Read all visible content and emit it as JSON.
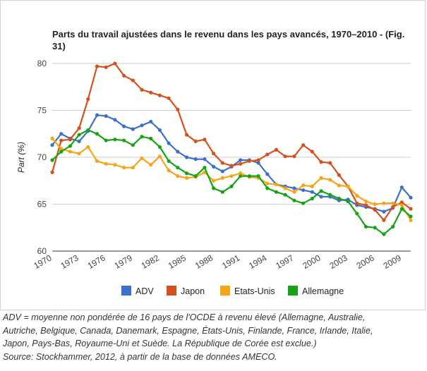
{
  "chart_data": {
    "type": "line",
    "title": "Parts du travail ajustées dans le revenu dans les pays avancés, 1970–2010 - (Fig. 31)",
    "ylabel": "Part (%)",
    "xlabel": "",
    "ylim": [
      60,
      80
    ],
    "yticks": [
      60,
      65,
      70,
      75,
      80
    ],
    "xticks": [
      1970,
      1973,
      1976,
      1979,
      1982,
      1985,
      1988,
      1991,
      1994,
      1997,
      2000,
      2003,
      2006,
      2009
    ],
    "x": [
      1970,
      1971,
      1972,
      1973,
      1974,
      1975,
      1976,
      1977,
      1978,
      1979,
      1980,
      1981,
      1982,
      1983,
      1984,
      1985,
      1986,
      1987,
      1988,
      1989,
      1990,
      1991,
      1992,
      1993,
      1994,
      1995,
      1996,
      1997,
      1998,
      1999,
      2000,
      2001,
      2002,
      2003,
      2004,
      2005,
      2006,
      2007,
      2008,
      2009,
      2010
    ],
    "grid": true,
    "legend": "bottom",
    "series": [
      {
        "name": "ADV",
        "color": "#3d6fcc",
        "values": [
          71.3,
          72.5,
          72.0,
          71.7,
          72.8,
          74.5,
          74.4,
          74.0,
          73.3,
          73.0,
          73.4,
          73.8,
          72.9,
          71.5,
          70.6,
          70.0,
          69.8,
          69.8,
          69.0,
          68.5,
          69.0,
          69.7,
          69.7,
          69.4,
          68.2,
          67.1,
          66.9,
          66.7,
          66.5,
          66.3,
          65.8,
          65.8,
          65.4,
          65.5,
          64.9,
          64.7,
          64.5,
          64.2,
          64.6,
          66.8,
          65.7
        ]
      },
      {
        "name": "Japon",
        "color": "#d7501b",
        "values": [
          68.4,
          71.8,
          71.9,
          73.1,
          76.2,
          79.7,
          79.6,
          80.0,
          78.7,
          78.2,
          77.2,
          76.9,
          76.6,
          76.3,
          75.1,
          72.4,
          71.7,
          71.9,
          70.4,
          69.4,
          69.1,
          69.3,
          69.6,
          69.7,
          70.3,
          70.8,
          70.1,
          70.1,
          71.3,
          70.6,
          69.5,
          69.4,
          68.1,
          66.9,
          65.1,
          64.9,
          64.4,
          63.3,
          64.7,
          65.2,
          64.5
        ]
      },
      {
        "name": "Etats-Unis",
        "color": "#f7a417",
        "values": [
          72.0,
          70.9,
          70.6,
          70.4,
          71.1,
          69.6,
          69.3,
          69.2,
          68.9,
          68.9,
          69.9,
          69.2,
          70.1,
          68.6,
          68.0,
          67.8,
          67.9,
          68.4,
          67.5,
          67.8,
          68.0,
          68.3,
          67.9,
          67.8,
          67.2,
          67.1,
          66.7,
          66.3,
          67.0,
          66.9,
          67.8,
          67.6,
          67.0,
          66.9,
          65.9,
          65.3,
          65.0,
          65.1,
          65.1,
          64.9,
          63.3
        ]
      },
      {
        "name": "Allemagne",
        "color": "#16a316",
        "values": [
          69.7,
          70.6,
          71.2,
          72.4,
          72.9,
          72.5,
          71.8,
          71.9,
          71.8,
          71.3,
          72.2,
          72.0,
          71.1,
          69.6,
          68.9,
          68.3,
          68.0,
          68.9,
          66.7,
          66.3,
          66.9,
          68.0,
          68.0,
          68.0,
          66.7,
          66.3,
          66.0,
          65.4,
          65.1,
          65.6,
          66.4,
          66.0,
          65.6,
          65.3,
          64.0,
          62.6,
          62.5,
          61.8,
          62.6,
          64.5,
          63.7
        ]
      }
    ]
  },
  "caption": {
    "lines": [
      "ADV = moyenne non pondérée de 16 pays de l'OCDE à revenu élevé (Allemagne, Australie,",
      "Autriche, Belgique, Canada, Danemark, Espagne, États-Unis, Finlande, France, Irlande, Italie,",
      "Japon, Pays-Bas, Royaume-Uni et Suède. La République de Corée est exclue.)",
      "Source: Stockhammer, 2012, à partir de la base de données AMECO."
    ]
  }
}
